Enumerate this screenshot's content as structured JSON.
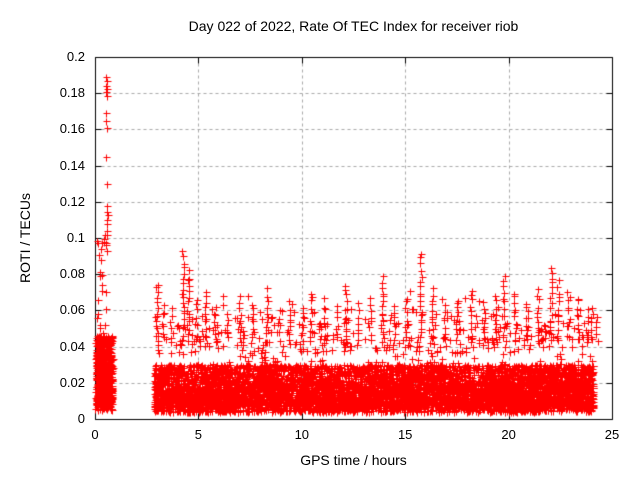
{
  "chart_data": {
    "type": "scatter",
    "title": "Day 022 of 2022, Rate Of TEC Index for receiver riob",
    "xlabel": "GPS time / hours",
    "ylabel": "ROTI / TECUs",
    "xlim": [
      0,
      25
    ],
    "ylim": [
      0,
      0.2
    ],
    "xticks": [
      0,
      5,
      10,
      15,
      20,
      25
    ],
    "yticks": [
      0,
      0.02,
      0.04,
      0.06,
      0.08,
      0.1,
      0.12,
      0.14,
      0.16,
      0.18,
      0.2
    ],
    "xtick_labels": [
      "0",
      "5",
      "10",
      "15",
      "20",
      "25"
    ],
    "ytick_labels": [
      "0",
      "0.02",
      "0.04",
      "0.06",
      "0.08",
      "0.1",
      "0.12",
      "0.14",
      "0.16",
      "0.18",
      "0.2"
    ],
    "grid": {
      "show": true,
      "color": "#a8a8a8",
      "dash": [
        3,
        3
      ]
    },
    "frame_color": "#000000",
    "background_color": "#ffffff",
    "legend": "none",
    "marker": {
      "shape": "+",
      "color": "#ff0000",
      "size": 7,
      "line_width": 1
    },
    "description": "Dense ROTI band 0.005-0.05 TECUs from ~2.9h to ~24h with spikes to ~0.09; isolated cluster 0-0.9h with outlier spike up to ~0.19; no data between ~0.9h and ~2.9h",
    "generator": {
      "seed": 20220122,
      "clusters": [
        {
          "name": "early-morning-dense",
          "x0": 0.02,
          "x1": 0.85,
          "count": 650,
          "dist": "band",
          "core_frac": 0.7,
          "core": [
            0.008,
            0.046
          ],
          "base": 0.005,
          "scale": 0.015,
          "ymax": 0.055
        },
        {
          "name": "early-morning-tail",
          "x0": 0.1,
          "x1": 0.6,
          "count": 24,
          "dist": "uniform",
          "base": 0.048,
          "ymax": 0.105
        },
        {
          "name": "main-band",
          "x0": 2.85,
          "x1": 24.1,
          "count": 6800,
          "dist": "band",
          "envelope": true,
          "core_frac": 0.55,
          "core": [
            0.007,
            0.03
          ],
          "base": 0.004,
          "scale": 0.011,
          "ymax": 0.048
        },
        {
          "name": "band-spiky-top",
          "x0": 2.9,
          "x1": 24.0,
          "count": 300,
          "dist": "band",
          "core_frac": 0,
          "core": [
            0,
            0
          ],
          "base": 0.036,
          "scale": 0.013,
          "ymax": 0.074
        }
      ],
      "spike_columns": [
        [
          3.0,
          0.075
        ],
        [
          3.3,
          0.063
        ],
        [
          3.7,
          0.06
        ],
        [
          4.25,
          0.092
        ],
        [
          4.5,
          0.081
        ],
        [
          4.9,
          0.066
        ],
        [
          5.35,
          0.07
        ],
        [
          5.8,
          0.062
        ],
        [
          6.4,
          0.058
        ],
        [
          7.0,
          0.067
        ],
        [
          7.6,
          0.063
        ],
        [
          8.3,
          0.071
        ],
        [
          8.9,
          0.06
        ],
        [
          9.4,
          0.064
        ],
        [
          10.0,
          0.062
        ],
        [
          10.45,
          0.07
        ],
        [
          11.1,
          0.066
        ],
        [
          11.7,
          0.061
        ],
        [
          12.15,
          0.074
        ],
        [
          12.7,
          0.063
        ],
        [
          13.3,
          0.066
        ],
        [
          13.9,
          0.079
        ],
        [
          14.5,
          0.062
        ],
        [
          15.05,
          0.067
        ],
        [
          15.75,
          0.091
        ],
        [
          16.3,
          0.071
        ],
        [
          16.9,
          0.063
        ],
        [
          17.5,
          0.066
        ],
        [
          18.2,
          0.072
        ],
        [
          18.8,
          0.064
        ],
        [
          19.35,
          0.068
        ],
        [
          19.75,
          0.079
        ],
        [
          20.3,
          0.07
        ],
        [
          20.9,
          0.064
        ],
        [
          21.4,
          0.072
        ],
        [
          22.05,
          0.084
        ],
        [
          22.4,
          0.076
        ],
        [
          22.9,
          0.071
        ],
        [
          23.35,
          0.067
        ],
        [
          23.8,
          0.06
        ],
        [
          24.0,
          0.062
        ],
        [
          24.25,
          0.056
        ]
      ],
      "outlier_points": [
        [
          0.53,
          0.189
        ],
        [
          0.56,
          0.1865
        ],
        [
          0.54,
          0.184
        ],
        [
          0.57,
          0.1825
        ],
        [
          0.55,
          0.1805
        ],
        [
          0.56,
          0.1785
        ],
        [
          0.54,
          0.169
        ],
        [
          0.55,
          0.1645
        ],
        [
          0.56,
          0.1605
        ],
        [
          0.55,
          0.145
        ],
        [
          0.57,
          0.13
        ],
        [
          0.6,
          0.1175
        ],
        [
          0.57,
          0.1145
        ],
        [
          0.61,
          0.1125
        ],
        [
          0.58,
          0.11
        ],
        [
          0.6,
          0.1075
        ],
        [
          0.56,
          0.104
        ],
        [
          0.59,
          0.1015
        ]
      ]
    }
  }
}
